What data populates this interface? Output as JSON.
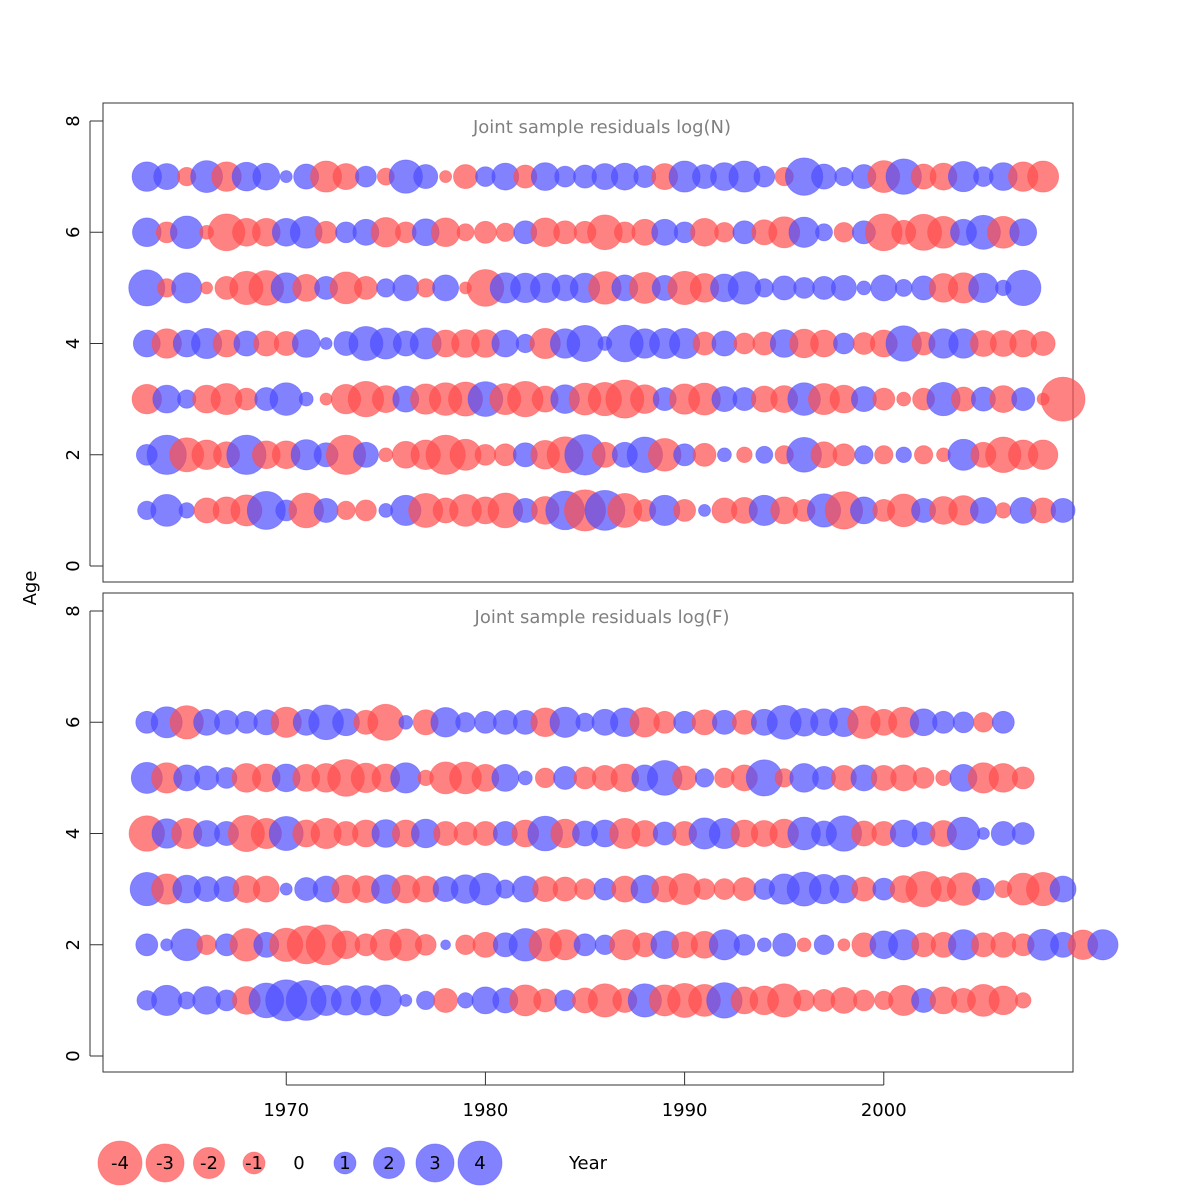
{
  "chart_data": {
    "type": "scatter",
    "xlabel": "Year",
    "ylabel": "Age",
    "x_ticks": [
      1970,
      1980,
      1990,
      2000
    ],
    "xlim": [
      1960.8,
      2009.5
    ],
    "y_ticks": [
      0,
      2,
      4,
      6,
      8
    ],
    "colors": {
      "negative": "#ff4d4d",
      "positive": "#4d4dff"
    },
    "panels": [
      {
        "title": "Joint sample residuals log(N)",
        "ylim": [
          0,
          8
        ],
        "first_year": 1963,
        "ages": [
          1,
          2,
          3,
          4,
          5,
          6,
          7
        ],
        "residuals": {
          "1": [
            0.7,
            2.1,
            0.5,
            -1.3,
            -1.5,
            -2.0,
            3.0,
            0.9,
            -2.5,
            1.2,
            -0.7,
            -0.9,
            0.4,
            1.9,
            -2.4,
            -1.3,
            -2.1,
            -1.5,
            -2.5,
            1.2,
            -1.6,
            3.1,
            -3.5,
            3.3,
            -2.4,
            -1.0,
            1.9,
            -1.0,
            0.3,
            -1.3,
            -1.4,
            1.9,
            -1.5,
            -1.0,
            2.3,
            -2.9,
            1.5,
            -1.0,
            -2.2,
            1.2,
            -1.6,
            -1.8,
            1.4,
            -0.5,
            1.4,
            -1.3,
            1.2
          ],
          "2": [
            0.9,
            3.2,
            -2.4,
            -1.8,
            -1.4,
            3.2,
            -1.6,
            -1.6,
            1.9,
            1.2,
            -3.2,
            1.3,
            -0.4,
            -1.5,
            -1.8,
            -3.2,
            -2.0,
            -0.9,
            -1.0,
            1.2,
            -1.7,
            -2.7,
            3.4,
            -1.3,
            1.3,
            2.6,
            -2.2,
            1.0,
            -1.1,
            0.4,
            -0.5,
            0.6,
            -0.7,
            2.5,
            -1.4,
            -1.0,
            0.7,
            -0.7,
            0.5,
            -0.7,
            -0.4,
            2.0,
            -1.3,
            -2.6,
            -1.8,
            -1.8
          ],
          "3": [
            -1.8,
            1.6,
            0.7,
            -1.6,
            -2.0,
            -1.0,
            1.1,
            2.2,
            0.4,
            -0.3,
            -1.8,
            -2.6,
            -1.5,
            1.4,
            -1.9,
            -2.2,
            -2.4,
            2.5,
            -2.0,
            -2.6,
            -1.4,
            1.7,
            -2.1,
            -2.3,
            -3.0,
            -1.7,
            1.1,
            -1.9,
            -2.1,
            1.3,
            1.1,
            -1.4,
            -1.5,
            2.2,
            -2.0,
            -1.6,
            1.3,
            -1.0,
            -0.4,
            -1.0,
            2.3,
            -1.2,
            1.2,
            -1.5,
            1.1,
            -0.3,
            -4.0
          ],
          "4": [
            1.5,
            -1.8,
            1.5,
            1.9,
            -1.5,
            1.3,
            -1.3,
            -1.2,
            1.6,
            0.3,
            1.2,
            2.4,
            2.0,
            1.3,
            2.0,
            -1.5,
            -1.6,
            -1.6,
            1.5,
            0.7,
            -1.9,
            1.8,
            2.7,
            0.4,
            2.8,
            1.8,
            1.9,
            1.9,
            -1.1,
            1.3,
            -0.9,
            -1.1,
            1.6,
            -1.7,
            -1.5,
            0.9,
            -1.0,
            -1.5,
            2.6,
            -1.1,
            1.8,
            1.8,
            -1.4,
            -1.4,
            -1.5,
            -1.2
          ],
          "5": [
            2.7,
            -0.7,
            1.9,
            -0.3,
            -1.1,
            -2.3,
            -2.5,
            1.9,
            -1.5,
            1.1,
            -2.1,
            -1.1,
            0.7,
            1.4,
            -0.7,
            1.4,
            -0.3,
            -2.8,
            1.9,
            1.8,
            1.8,
            1.4,
            1.8,
            -2.2,
            1.4,
            -2.0,
            1.3,
            -2.3,
            -1.7,
            1.6,
            2.2,
            0.7,
            1.2,
            0.9,
            1.1,
            1.3,
            0.4,
            1.4,
            0.6,
            1.2,
            -1.7,
            -1.9,
            1.8,
            0.5,
            2.6
          ],
          "6": [
            1.7,
            -0.9,
            2.2,
            -0.4,
            -2.8,
            -1.6,
            -1.6,
            1.6,
            2.1,
            -1.0,
            0.9,
            1.4,
            -1.8,
            -0.9,
            1.5,
            -1.7,
            -0.6,
            -1.0,
            -0.7,
            1.1,
            -1.7,
            -1.1,
            -1.0,
            -2.5,
            -0.9,
            -1.4,
            1.4,
            0.9,
            -1.6,
            -0.8,
            1.1,
            -1.3,
            -2.0,
            1.9,
            0.6,
            -0.8,
            1.1,
            -2.8,
            -1.2,
            -2.7,
            -2.1,
            1.4,
            2.4,
            -2.1,
            1.5
          ],
          "7": [
            1.8,
            1.4,
            -0.7,
            2.1,
            -1.8,
            1.7,
            1.5,
            0.3,
            1.3,
            -2.0,
            -1.4,
            0.9,
            -0.6,
            2.3,
            1.2,
            -0.3,
            -1.2,
            0.8,
            1.5,
            -1.1,
            1.6,
            0.9,
            1.1,
            1.4,
            1.5,
            1.0,
            -1.4,
            2.0,
            1.2,
            1.6,
            2.0,
            0.9,
            -0.7,
            2.9,
            1.3,
            0.7,
            1.2,
            -2.1,
            2.6,
            -1.3,
            -1.5,
            1.9,
            0.8,
            1.6,
            -1.8,
            -2.0
          ]
        }
      },
      {
        "title": "Joint sample residuals log(F)",
        "ylim": [
          0,
          8
        ],
        "first_year": 1963,
        "ages": [
          1,
          2,
          3,
          4,
          5,
          6
        ],
        "residuals": {
          "1": [
            0.8,
            1.9,
            0.6,
            1.6,
            0.9,
            -1.6,
            2.5,
            3.5,
            3.3,
            1.9,
            1.8,
            1.8,
            2.0,
            0.3,
            0.7,
            -1.2,
            0.5,
            1.5,
            1.3,
            -2.0,
            -1.1,
            0.9,
            -1.3,
            -2.3,
            -1.2,
            2.3,
            -2.0,
            -2.4,
            -2.1,
            2.6,
            -1.5,
            -1.7,
            -2.3,
            -0.9,
            -1.0,
            -1.4,
            -0.9,
            -0.7,
            -1.9,
            1.2,
            -1.5,
            -1.2,
            -2.1,
            -1.7,
            -0.5
          ],
          "2": [
            1.0,
            0.3,
            2.1,
            -0.8,
            1.0,
            -2.2,
            1.3,
            -2.3,
            -3.0,
            -3.3,
            -1.6,
            -1.0,
            -2.0,
            -2.1,
            -0.9,
            0.2,
            -0.8,
            -1.3,
            1.2,
            2.2,
            -2.2,
            -1.9,
            1.0,
            0.8,
            -1.9,
            -1.2,
            1.6,
            -1.4,
            -1.5,
            1.9,
            0.9,
            0.4,
            1.1,
            -0.4,
            0.8,
            -0.3,
            -1.2,
            1.6,
            1.9,
            -1.2,
            -1.3,
            1.9,
            -1.2,
            -1.3,
            -1.0,
            2.0,
            1.3,
            -1.8,
            1.9
          ],
          "3": [
            2.3,
            -1.9,
            1.6,
            1.3,
            1.3,
            -1.5,
            -1.4,
            0.3,
            1.1,
            1.4,
            -1.6,
            -1.5,
            1.7,
            -1.6,
            -1.4,
            1.3,
            1.7,
            2.1,
            0.7,
            1.4,
            -1.3,
            -1.2,
            -0.9,
            1.0,
            -1.4,
            1.6,
            -1.4,
            -2.0,
            -0.9,
            -0.9,
            -1.1,
            0.9,
            1.9,
            2.4,
            1.8,
            1.6,
            -1.2,
            1.0,
            -1.5,
            -2.6,
            -1.3,
            -2.2,
            1.0,
            -0.6,
            -2.1,
            -2.3,
            1.4
          ],
          "4": [
            -2.6,
            1.8,
            -1.9,
            1.4,
            1.2,
            -2.7,
            -1.9,
            2.4,
            -1.5,
            -1.9,
            -1.2,
            -1.5,
            1.6,
            -1.5,
            1.7,
            -1.2,
            -1.1,
            -1.2,
            1.2,
            -1.5,
            2.5,
            -1.7,
            1.3,
            1.5,
            -1.9,
            -1.4,
            1.1,
            -1.2,
            2.0,
            1.9,
            -1.5,
            -1.4,
            -1.7,
            2.2,
            1.3,
            2.6,
            -1.3,
            -1.2,
            1.5,
            1.1,
            -1.4,
            2.2,
            0.3,
            1.2,
            1.0
          ],
          "5": [
            2.0,
            -1.9,
            1.4,
            1.2,
            0.9,
            -1.7,
            -1.6,
            1.6,
            -1.5,
            -1.7,
            -2.8,
            -1.8,
            -1.6,
            1.9,
            -0.5,
            -2.1,
            -2.1,
            -1.5,
            1.5,
            0.4,
            -0.8,
            1.1,
            -1.0,
            -1.3,
            -1.6,
            1.4,
            2.5,
            -1.2,
            0.7,
            -0.8,
            -1.4,
            2.7,
            -0.7,
            1.7,
            1.1,
            -1.3,
            1.4,
            -1.3,
            -1.4,
            -0.9,
            -0.5,
            1.5,
            -1.9,
            -1.7,
            -1.0
          ],
          "6": [
            1.0,
            2.0,
            -2.3,
            1.4,
            1.2,
            1.0,
            1.3,
            -1.9,
            1.4,
            2.5,
            1.5,
            -1.2,
            -2.7,
            0.4,
            -1.3,
            1.8,
            0.8,
            1.0,
            1.2,
            1.2,
            -1.7,
            1.9,
            0.7,
            1.4,
            1.7,
            -1.8,
            -1.0,
            1.0,
            -1.3,
            1.2,
            -1.2,
            1.4,
            2.4,
            1.6,
            1.5,
            1.7,
            -2.2,
            -1.4,
            -1.9,
            1.5,
            1.0,
            0.9,
            -0.8,
            1.0
          ]
        }
      }
    ],
    "legend": {
      "values": [
        -4,
        -3,
        -2,
        -1,
        0,
        1,
        2,
        3,
        4
      ],
      "labels": [
        "-4",
        "-3",
        "-2",
        "-1",
        "0",
        "1",
        "2",
        "3",
        "4"
      ]
    }
  }
}
